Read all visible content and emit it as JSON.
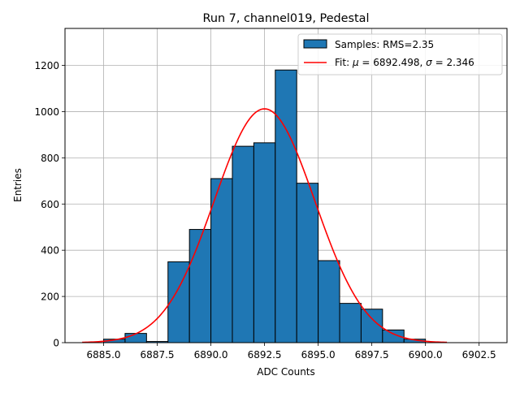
{
  "chart_data": {
    "type": "bar",
    "title": "Run 7, channel019, Pedestal",
    "xlabel": "ADC Counts",
    "ylabel": "Entries",
    "xlim": [
      6883.2,
      6903.8
    ],
    "ylim": [
      0,
      1360
    ],
    "grid": true,
    "legend_position": "top-right",
    "xticks": [
      6885.0,
      6887.5,
      6890.0,
      6892.5,
      6895.0,
      6897.5,
      6900.0,
      6902.5
    ],
    "xtick_labels": [
      "6885.0",
      "6887.5",
      "6890.0",
      "6892.5",
      "6895.0",
      "6897.5",
      "6900.0",
      "6902.5"
    ],
    "yticks": [
      0,
      200,
      400,
      600,
      800,
      1000,
      1200
    ],
    "ytick_labels": [
      "0",
      "200",
      "400",
      "600",
      "800",
      "1000",
      "1200"
    ],
    "histogram": {
      "name": "Samples: RMS=2.35",
      "color": "#1f77b4",
      "edgecolor": "#000000",
      "bin_edges": [
        6885,
        6886,
        6887,
        6888,
        6889,
        6890,
        6891,
        6892,
        6893,
        6894,
        6895,
        6896,
        6897,
        6898,
        6899,
        6900,
        6901,
        6902,
        6903
      ],
      "counts": [
        15,
        40,
        5,
        350,
        490,
        710,
        850,
        865,
        1180,
        690,
        355,
        170,
        145,
        55,
        15,
        0,
        0,
        0
      ]
    },
    "fit": {
      "name_prefix": "Fit: ",
      "mu_symbol": "μ",
      "mu_text": " = 6892.498, ",
      "sigma_symbol": "σ",
      "sigma_text": " = 2.346",
      "mu": 6892.498,
      "sigma": 2.346,
      "amplitude": 1012,
      "x_range": [
        6884,
        6901
      ],
      "color": "#ff0000"
    }
  }
}
